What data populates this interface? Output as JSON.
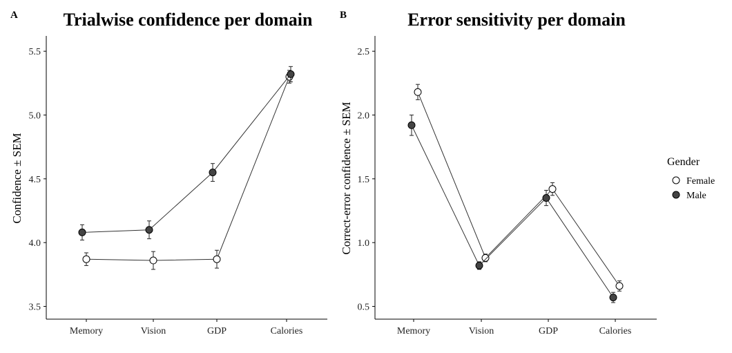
{
  "chart_data": [
    {
      "panel_label": "A",
      "type": "line",
      "title": "Trialwise confidence per domain",
      "xlabel": "",
      "ylabel": "Confidence ± SEM",
      "categories": [
        "Memory",
        "Vision",
        "GDP",
        "Calories"
      ],
      "ylim": [
        3.4,
        5.62
      ],
      "yticks": [
        "3.5",
        "4.0",
        "4.5",
        "5.0",
        "5.5"
      ],
      "series": [
        {
          "name": "Female",
          "values": [
            3.87,
            3.86,
            3.87,
            5.3
          ],
          "sem": [
            0.05,
            0.07,
            0.07,
            0.05
          ]
        },
        {
          "name": "Male",
          "values": [
            4.08,
            4.1,
            4.55,
            5.32
          ],
          "sem": [
            0.06,
            0.07,
            0.07,
            0.06
          ]
        }
      ]
    },
    {
      "panel_label": "B",
      "type": "line",
      "title": "Error sensitivity per domain",
      "xlabel": "",
      "ylabel": "Correct-error confidence ± SEM",
      "categories": [
        "Memory",
        "Vision",
        "GDP",
        "Calories"
      ],
      "ylim": [
        0.4,
        2.62
      ],
      "yticks": [
        "0.5",
        "1.0",
        "1.5",
        "2.0",
        "2.5"
      ],
      "series": [
        {
          "name": "Female",
          "values": [
            2.18,
            0.88,
            1.42,
            0.66
          ],
          "sem": [
            0.06,
            0.03,
            0.05,
            0.04
          ]
        },
        {
          "name": "Male",
          "values": [
            1.92,
            0.82,
            1.35,
            0.57
          ],
          "sem": [
            0.08,
            0.03,
            0.06,
            0.04
          ]
        }
      ]
    }
  ],
  "legend": {
    "title": "Gender",
    "placement": "right",
    "entries": [
      {
        "label": "Female",
        "fill": "#ffffff"
      },
      {
        "label": "Male",
        "fill": "#444444"
      }
    ]
  },
  "colors": {
    "female_fill": "#ffffff",
    "male_fill": "#444444",
    "line": "#333333",
    "axis": "#000000"
  }
}
